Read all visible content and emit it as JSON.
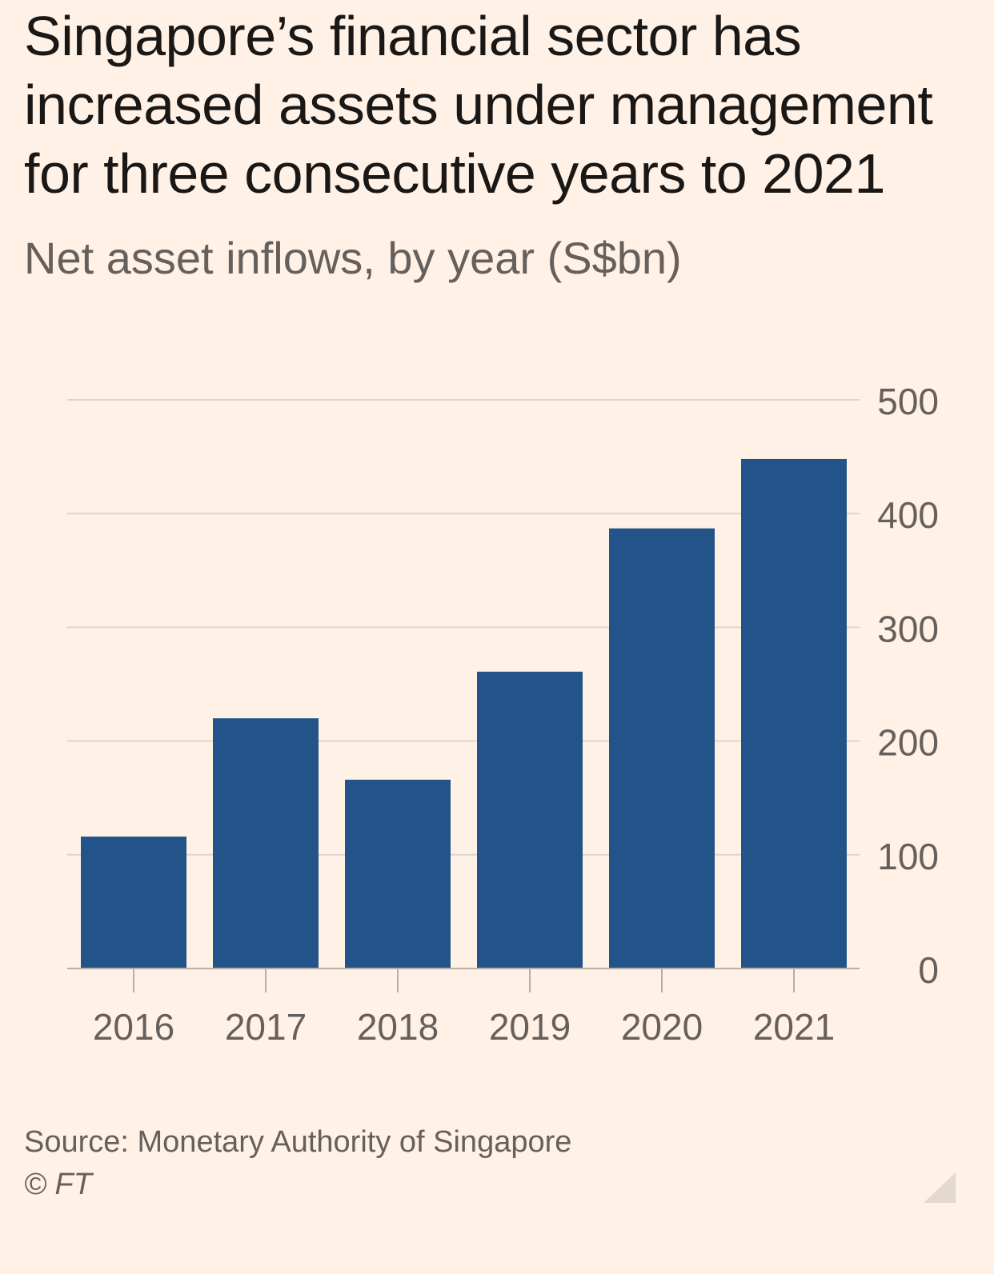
{
  "header": {
    "title": "Singapore’s financial sector has increased assets under management for three consecutive years to 2021",
    "subtitle": "Net asset inflows, by year (S$bn)"
  },
  "footer": {
    "source": "Source: Monetary Authority of Singapore",
    "copyright": "© FT"
  },
  "colors": {
    "background": "#fff1e5",
    "bar": "#22548a",
    "grid": "#d9d6d0",
    "axis": "#b3afaa",
    "label": "#66605c"
  },
  "chart_data": {
    "type": "bar",
    "title": "Singapore’s financial sector has increased assets under management for three consecutive years to 2021",
    "subtitle": "Net asset inflows, by year (S$bn)",
    "xlabel": "",
    "ylabel": "",
    "categories": [
      "2016",
      "2017",
      "2018",
      "2019",
      "2020",
      "2021"
    ],
    "values": [
      116,
      220,
      166,
      261,
      387,
      448
    ],
    "ylim": [
      0,
      500
    ],
    "yticks": [
      0,
      100,
      200,
      300,
      400,
      500
    ],
    "y_axis_side": "right",
    "grid": true,
    "legend": "none"
  }
}
